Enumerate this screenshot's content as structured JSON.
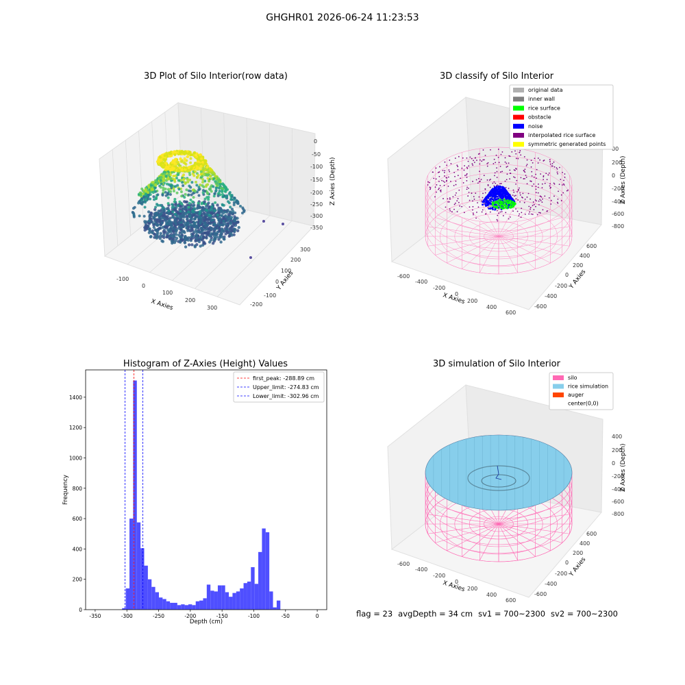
{
  "suptitle": "GHGHR01 2026-06-24 11:23:53",
  "colors": {
    "original_data": "#b0b0b0",
    "inner_wall": "#808080",
    "rice_surface": "#00ff00",
    "obstacle": "#ff0000",
    "noise": "#0000ff",
    "interpolated_rice_surface": "#800080",
    "symmetric_generated_points": "#ffff00",
    "silo": "#ff69b4",
    "rice_simulation": "#87ceeb",
    "auger": "#ff4500",
    "histogram_bar": "#4f4fff"
  },
  "plot1": {
    "title": "3D Plot of Silo Interior(row data)",
    "xlabel": "X Axies",
    "ylabel": "Y Axies",
    "zlabel": "Z Axies (Depth)",
    "xticks": [
      "-100",
      "0",
      "100",
      "200",
      "300"
    ],
    "yticks": [
      "-200",
      "-100",
      "0",
      "100",
      "200",
      "300"
    ],
    "zticks": [
      "0",
      "-50",
      "-100",
      "-150",
      "-200",
      "-250",
      "-300",
      "-350"
    ]
  },
  "plot2": {
    "title": "3D classify of Silo Interior",
    "xlabel": "X Axies",
    "ylabel": "Y Axies",
    "zlabel": "Z Axies (Depth)",
    "xticks": [
      "-600",
      "-400",
      "-200",
      "0",
      "200",
      "400",
      "600"
    ],
    "yticks": [
      "-600",
      "-400",
      "-200",
      "0",
      "200",
      "400",
      "600"
    ],
    "zticks": [
      "200",
      "0",
      "-200",
      "-400",
      "-600",
      "-800"
    ],
    "zticks_partial": "00",
    "legend": [
      {
        "label": "original data",
        "color": "#b0b0b0"
      },
      {
        "label": "inner wall",
        "color": "#808080"
      },
      {
        "label": "rice surface",
        "color": "#00ff00"
      },
      {
        "label": "obstacle",
        "color": "#ff0000"
      },
      {
        "label": "noise",
        "color": "#0000ff"
      },
      {
        "label": "interpolated rice surface",
        "color": "#800080"
      },
      {
        "label": "symmetric generated points",
        "color": "#ffff00"
      }
    ]
  },
  "plot4": {
    "title": "3D simulation of Silo Interior",
    "xlabel": "X Axies",
    "ylabel": "Y Axies",
    "zlabel": "Z Axies (Depth)",
    "xticks": [
      "-600",
      "-400",
      "-200",
      "0",
      "200",
      "400",
      "600"
    ],
    "yticks": [
      "-600",
      "-400",
      "-200",
      "0",
      "200",
      "400",
      "600"
    ],
    "zticks": [
      "400",
      "200",
      "0",
      "-200",
      "-400",
      "-600",
      "-800"
    ],
    "legend": [
      {
        "label": "silo",
        "color": "#ff69b4"
      },
      {
        "label": "rice simulation",
        "color": "#87ceeb"
      },
      {
        "label": "auger",
        "color": "#ff4500"
      },
      {
        "label": "center(0,0)",
        "color": ""
      }
    ]
  },
  "chart_data": {
    "type": "bar",
    "title": "Histogram of Z-Axies (Height) Values",
    "xlabel": "Depth (cm)",
    "ylabel": "Frequency",
    "xlim": [
      -365,
      15
    ],
    "ylim": [
      0,
      1580
    ],
    "xticks": [
      -350,
      -300,
      -250,
      -200,
      -150,
      -100,
      -50,
      0
    ],
    "yticks": [
      0,
      200,
      400,
      600,
      800,
      1000,
      1200,
      1400
    ],
    "bin_width": 5.8,
    "bin_start": -307.5,
    "values": [
      10,
      140,
      600,
      1510,
      575,
      405,
      290,
      200,
      150,
      115,
      80,
      70,
      55,
      45,
      45,
      30,
      35,
      30,
      35,
      30,
      55,
      60,
      75,
      165,
      125,
      120,
      160,
      160,
      115,
      85,
      110,
      120,
      140,
      175,
      185,
      280,
      170,
      380,
      535,
      510,
      120,
      15,
      60
    ],
    "vlines": [
      {
        "label": "first_peak: -288.89 cm",
        "x": -288.89,
        "color": "#ff0000"
      },
      {
        "label": "Upper_limit: -274.83 cm",
        "x": -274.83,
        "color": "#0000ff"
      },
      {
        "label": "Lower_limit: -302.96 cm",
        "x": -302.96,
        "color": "#0000ff"
      }
    ],
    "legend_position": "upper right"
  },
  "footer": {
    "flag": "flag = 23",
    "avg_depth": "avgDepth = 34 cm",
    "sv1": "sv1 = 700~2300",
    "sv2": "sv2 = 700~2300"
  }
}
